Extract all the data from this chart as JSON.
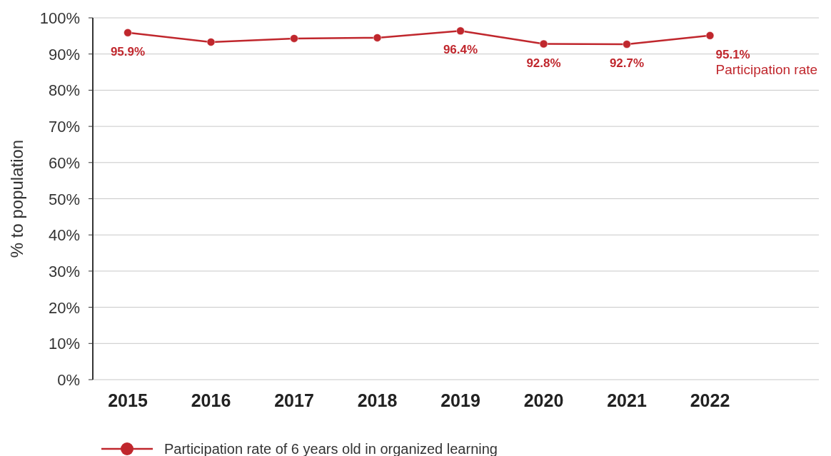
{
  "chart_data": {
    "type": "line",
    "ylabel": "% to population",
    "categories": [
      "2015",
      "2016",
      "2017",
      "2018",
      "2019",
      "2020",
      "2021",
      "2022"
    ],
    "series": [
      {
        "name": "Participation rate of 6 years old in organized learning",
        "color": "#c0272d",
        "values": [
          95.9,
          93.3,
          94.3,
          94.5,
          96.4,
          92.8,
          92.7,
          95.1
        ],
        "value_labels": [
          "95.9%",
          null,
          null,
          null,
          "96.4%",
          "92.8%",
          "92.7%",
          "95.1%"
        ]
      }
    ],
    "ylim": [
      0,
      100
    ],
    "yticks": [
      {
        "value": 0,
        "label": "0%"
      },
      {
        "value": 10,
        "label": "10%"
      },
      {
        "value": 20,
        "label": "20%"
      },
      {
        "value": 30,
        "label": "30%"
      },
      {
        "value": 40,
        "label": "40%"
      },
      {
        "value": 50,
        "label": "50%"
      },
      {
        "value": 60,
        "label": "60%"
      },
      {
        "value": 70,
        "label": "70%"
      },
      {
        "value": 80,
        "label": "80%"
      },
      {
        "value": 90,
        "label": "90%"
      },
      {
        "value": 100,
        "label": "100%"
      }
    ],
    "grid": "y",
    "legend": "bottom",
    "marker": "circle",
    "line_style": "solid",
    "annotations": [
      {
        "text": "Participation rate",
        "x": "2022",
        "y": 95.1
      }
    ]
  }
}
